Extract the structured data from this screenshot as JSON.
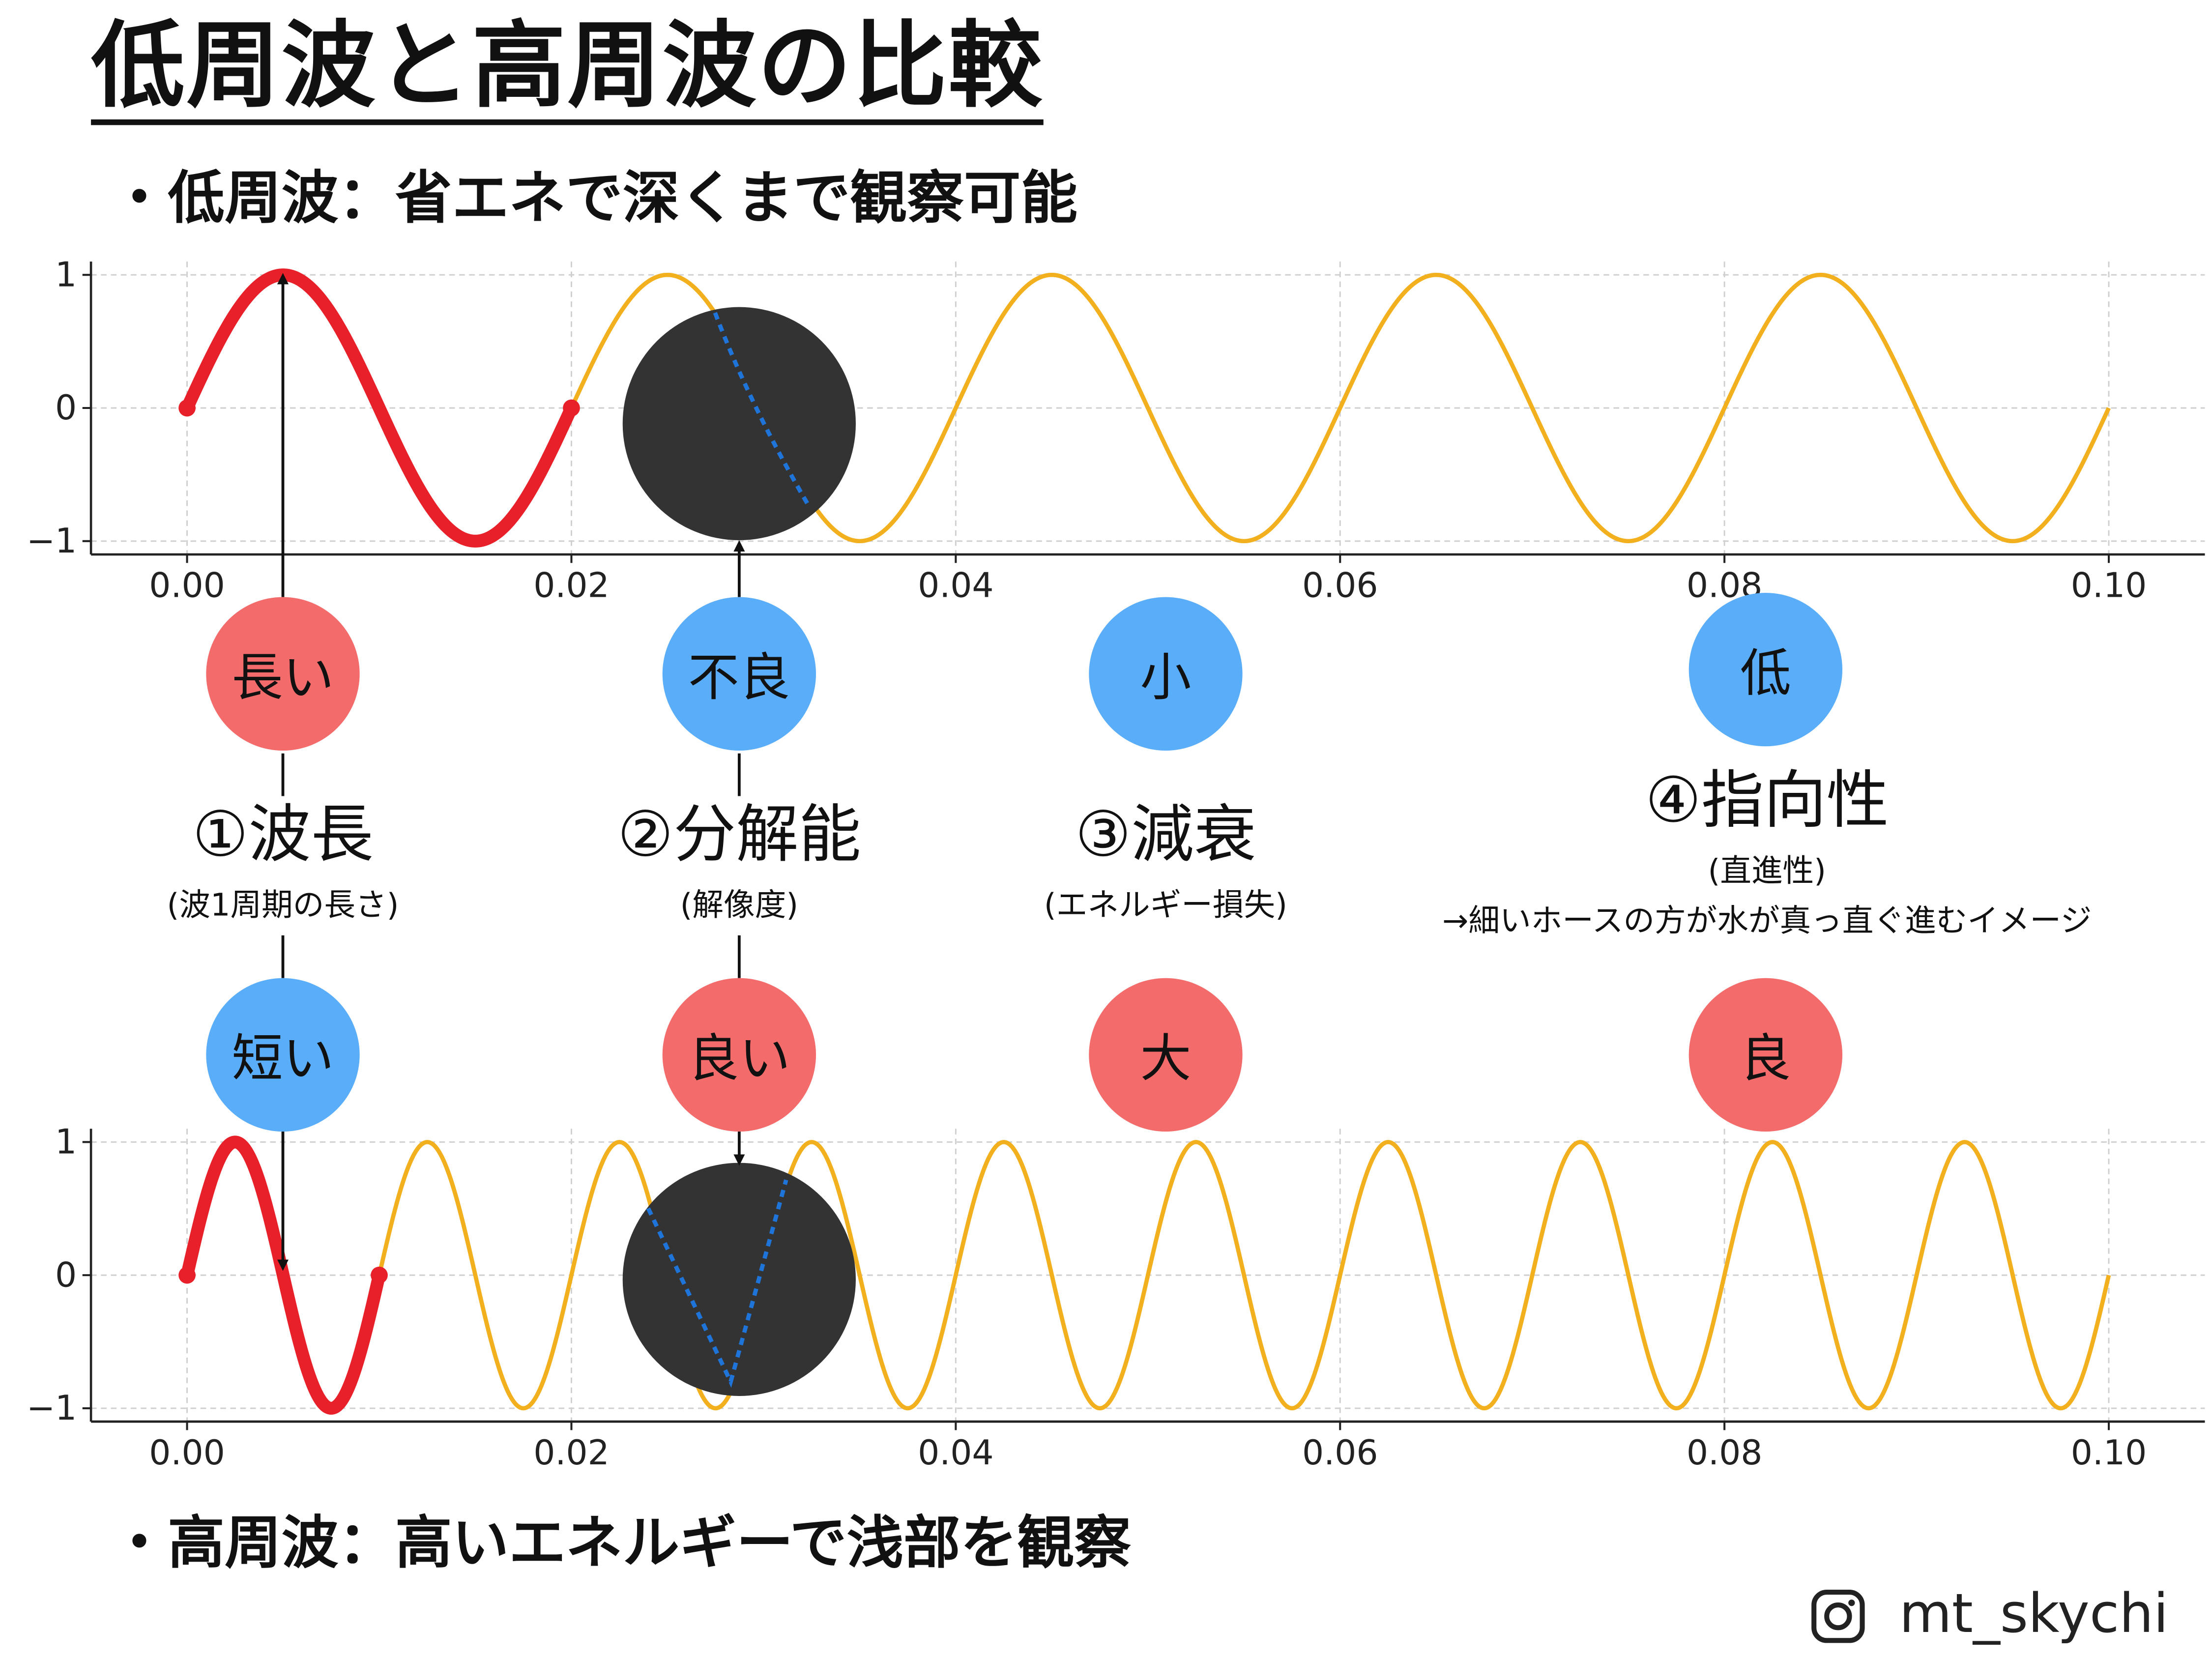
{
  "title": "低周波と高周波の比較",
  "bullet_low": "・低周波：省エネで深くまで観察可能",
  "bullet_high": "・高周波：高いエネルギーで浅部を観察",
  "properties": [
    {
      "name": "①波長",
      "sub": "(波1周期の長さ)",
      "low": "長い",
      "high": "短い",
      "low_color": "#f36b6b",
      "high_color": "#5aadf8"
    },
    {
      "name": "②分解能",
      "sub": "(解像度)",
      "low": "不良",
      "high": "良い",
      "low_color": "#5aadf8",
      "high_color": "#f36b6b"
    },
    {
      "name": "③減衰",
      "sub": "(エネルギー損失)",
      "low": "小",
      "high": "大",
      "low_color": "#5aadf8",
      "high_color": "#f36b6b"
    },
    {
      "name": "④指向性",
      "sub": "(直進性)",
      "sub2": "→細いホースの方が水が真っ直ぐ進むイメージ",
      "low": "低",
      "high": "良",
      "low_color": "#5aadf8",
      "high_color": "#f36b6b"
    }
  ],
  "handle": "mt_skychi",
  "colors": {
    "wave": "#f2b01e",
    "highlight": "#e8202a",
    "zoom": "#333333",
    "zoom_line": "#1e74d8"
  },
  "chart_data": [
    {
      "type": "line",
      "series": [
        {
          "frequency": 50,
          "amplitude": 1
        }
      ],
      "highlight_range": [
        0,
        0.02
      ],
      "x_range": [
        0,
        0.1
      ],
      "xlim": [
        -0.005,
        0.105
      ],
      "ylim": [
        -1.1,
        1.1
      ],
      "xticks": [
        "0.00",
        "0.02",
        "0.04",
        "0.06",
        "0.08",
        "0.10"
      ],
      "yticks": [
        "1",
        "0",
        "−1"
      ],
      "grid": true
    },
    {
      "type": "line",
      "series": [
        {
          "frequency": 100,
          "amplitude": 1
        }
      ],
      "highlight_range": [
        0,
        0.01
      ],
      "x_range": [
        0,
        0.1
      ],
      "xlim": [
        -0.005,
        0.105
      ],
      "ylim": [
        -1.1,
        1.1
      ],
      "xticks": [
        "0.00",
        "0.02",
        "0.04",
        "0.06",
        "0.08",
        "0.10"
      ],
      "yticks": [
        "1",
        "0",
        "−1"
      ],
      "grid": true
    }
  ]
}
